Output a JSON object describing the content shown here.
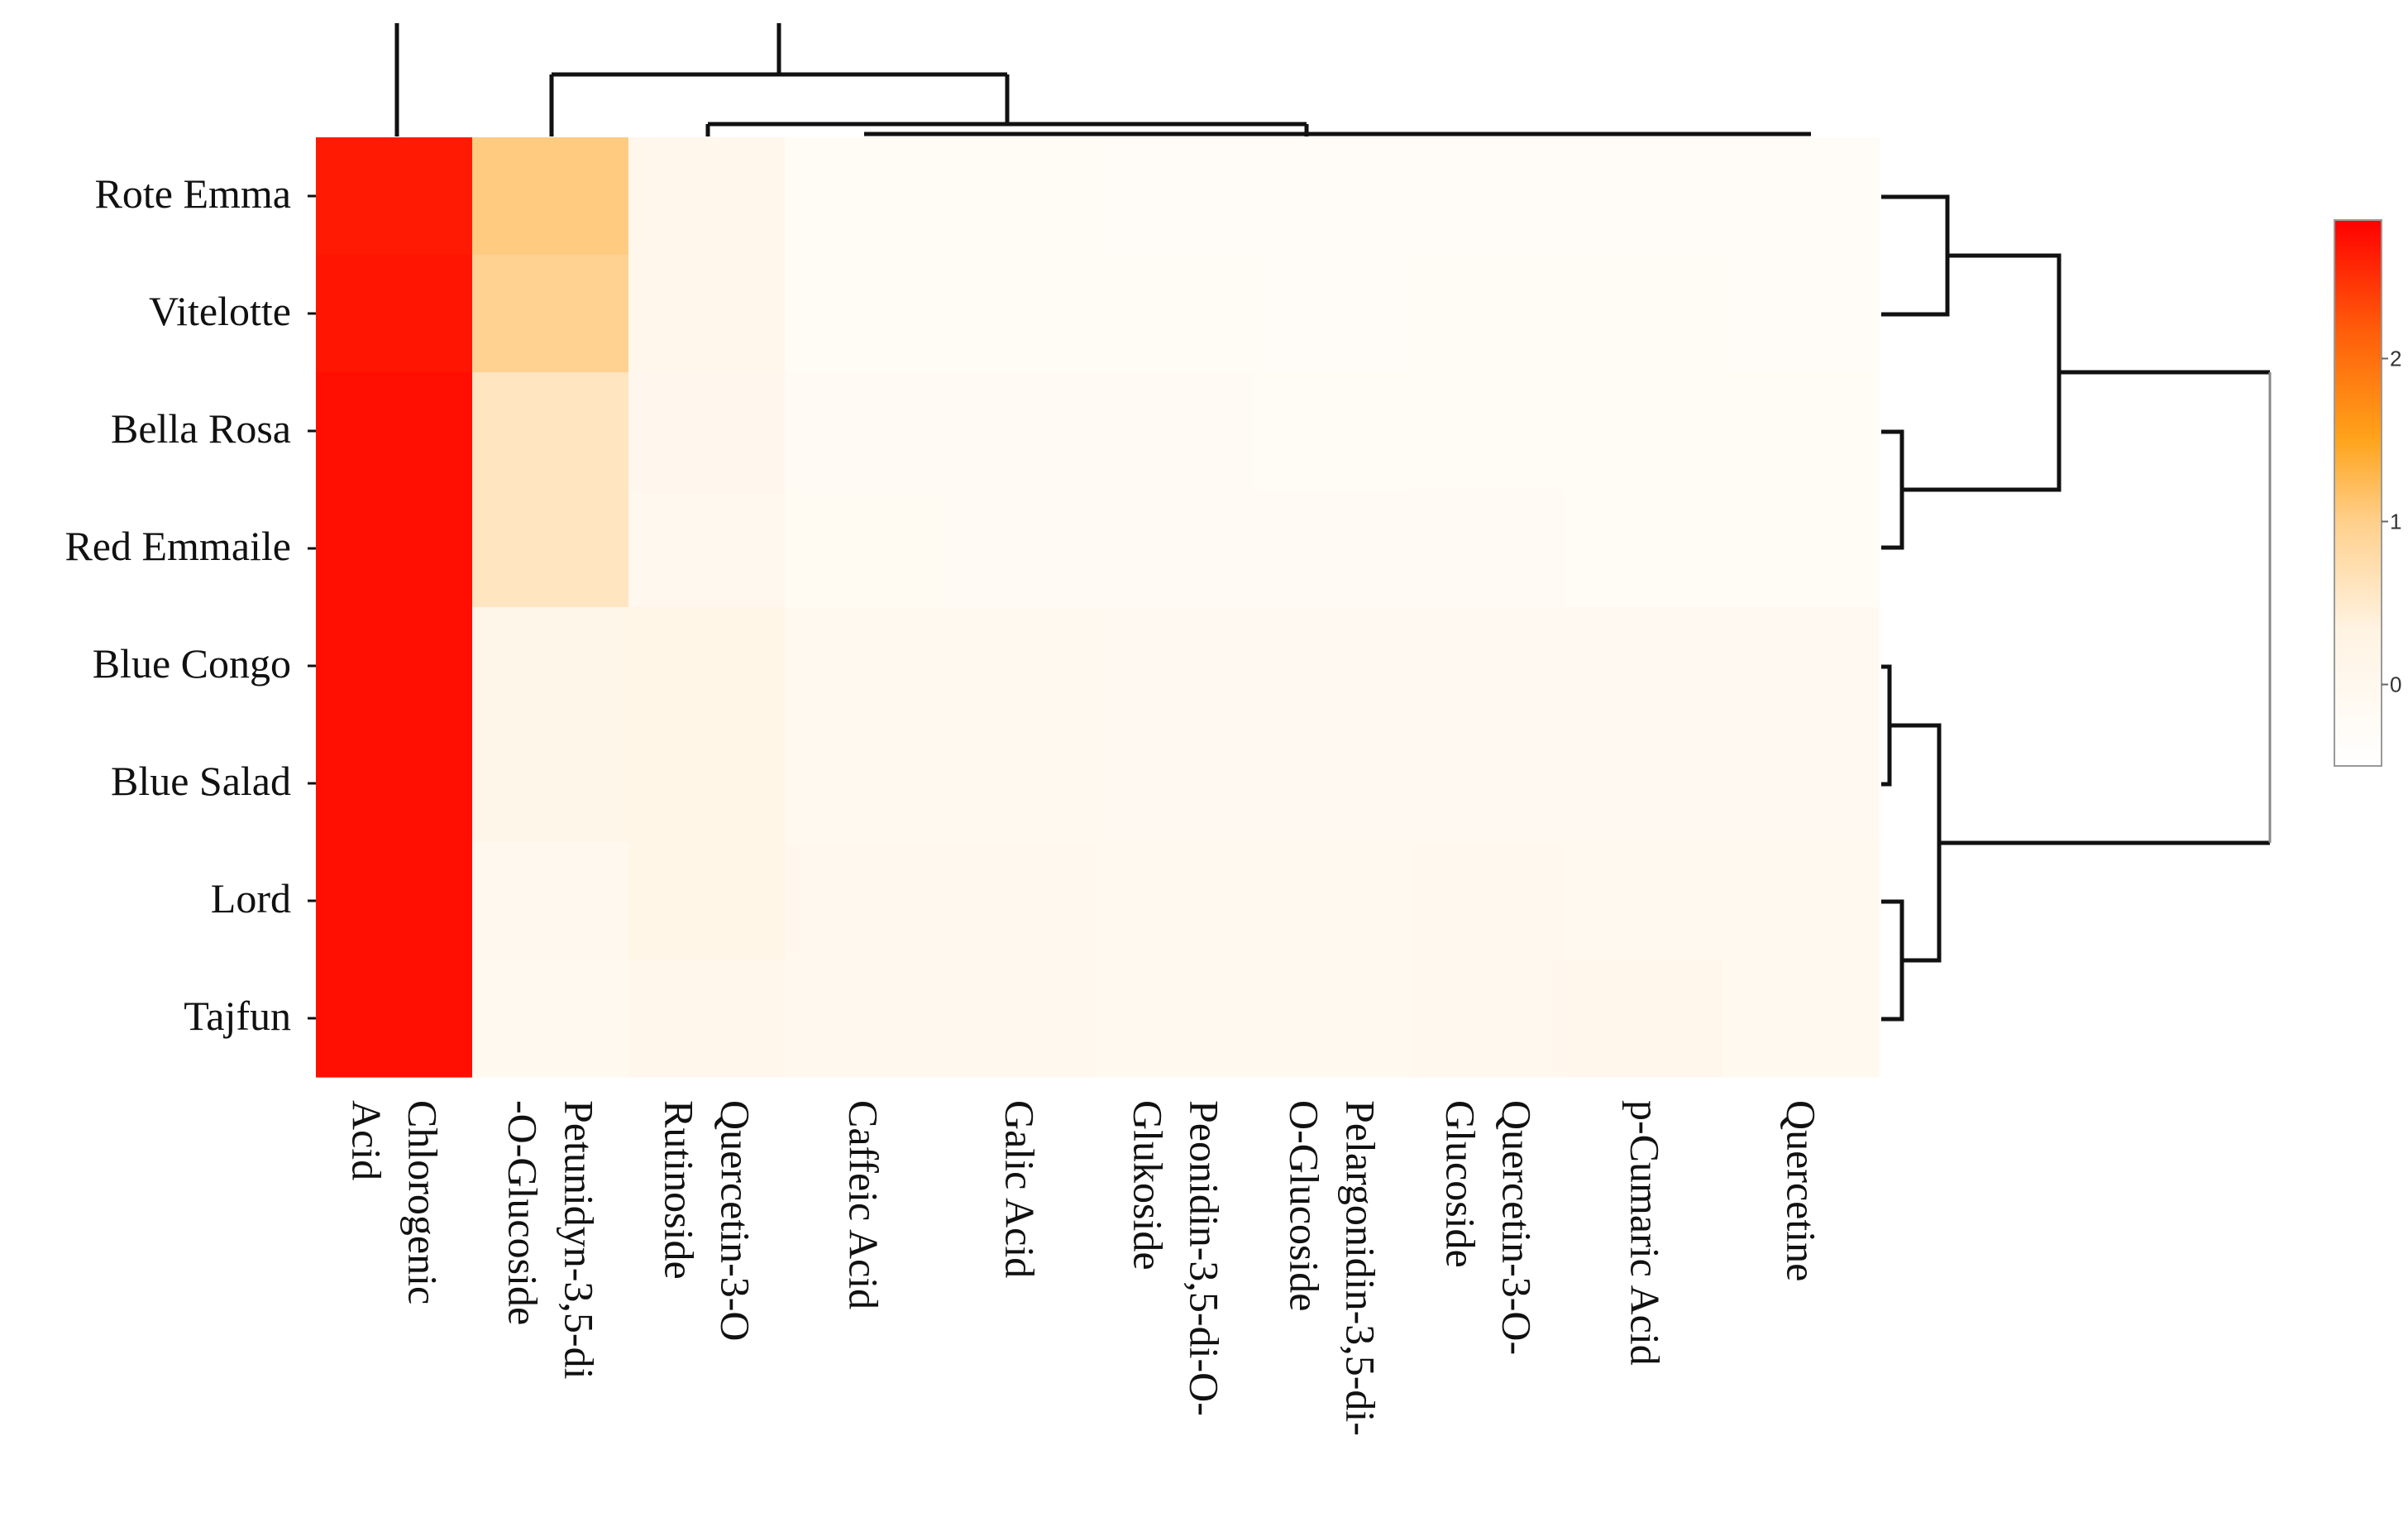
{
  "chart_data": {
    "type": "heatmap",
    "rows": [
      "Rote Emma",
      "Vitelotte",
      "Bella Rosa",
      "Red Emmaile",
      "Blue Congo",
      "Blue Salad",
      "Lord",
      "Tajfun"
    ],
    "columns": [
      [
        "Chlorogenic",
        "Acid"
      ],
      [
        "Petunidyn-3,5-di",
        "-O-Glucoside"
      ],
      [
        "Quercetin-3-O",
        "Rutinoside"
      ],
      [
        "Caffeic Acid"
      ],
      [
        "Galic Acid"
      ],
      [
        "Peonidin-3,5-di-O-",
        "Glukoside"
      ],
      [
        "Pelargonidin-3,5-di-",
        "O-Glucoside"
      ],
      [
        "Quercetin-3-O-",
        "Glucoside"
      ],
      [
        "p-Cumaric Acid"
      ],
      [
        "Quercetine"
      ]
    ],
    "values": [
      [
        2.65,
        1.05,
        0.08,
        -0.2,
        -0.22,
        -0.23,
        -0.24,
        -0.24,
        -0.25,
        -0.25
      ],
      [
        2.7,
        0.95,
        0.05,
        -0.2,
        -0.2,
        -0.22,
        -0.23,
        -0.22,
        -0.22,
        -0.24
      ],
      [
        2.75,
        0.6,
        0.03,
        -0.15,
        -0.16,
        -0.18,
        -0.2,
        -0.2,
        -0.2,
        -0.2
      ],
      [
        2.75,
        0.6,
        0.0,
        -0.12,
        -0.18,
        -0.18,
        -0.18,
        -0.14,
        -0.2,
        -0.2
      ],
      [
        2.75,
        0.12,
        0.15,
        -0.05,
        -0.08,
        -0.1,
        -0.1,
        -0.1,
        -0.1,
        -0.1
      ],
      [
        2.75,
        0.12,
        0.15,
        -0.05,
        -0.08,
        -0.1,
        -0.1,
        -0.1,
        -0.1,
        -0.1
      ],
      [
        2.75,
        -0.02,
        0.15,
        0.0,
        0.0,
        -0.05,
        -0.05,
        0.0,
        -0.05,
        -0.05
      ],
      [
        2.75,
        -0.05,
        0.05,
        0.0,
        0.0,
        -0.05,
        -0.05,
        0.0,
        0.05,
        -0.05
      ]
    ],
    "color_scale": {
      "low": "#ffffff",
      "mid": "#ffa31a",
      "high": "#ff0000",
      "min": -0.5,
      "max": 2.85,
      "ticks": [
        2,
        1,
        0
      ]
    },
    "title": "",
    "xlabel": "",
    "ylabel": "",
    "legend": "right",
    "row_dendrogram": true,
    "column_dendrogram": true
  }
}
